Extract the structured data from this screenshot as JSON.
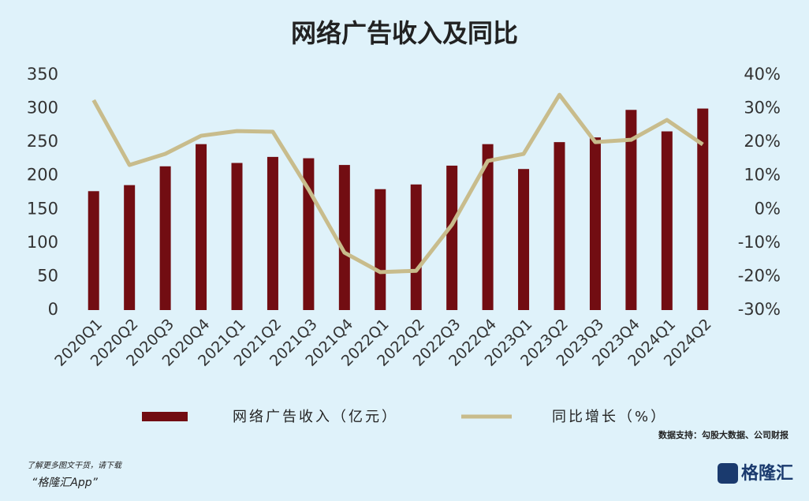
{
  "chart_data": {
    "type": "combo",
    "title": "网络广告收入及同比",
    "categories": [
      "2020Q1",
      "2020Q2",
      "2020Q3",
      "2020Q4",
      "2021Q1",
      "2021Q2",
      "2021Q3",
      "2021Q4",
      "2022Q1",
      "2022Q2",
      "2022Q3",
      "2022Q4",
      "2023Q1",
      "2023Q2",
      "2023Q3",
      "2023Q4",
      "2024Q1",
      "2024Q2"
    ],
    "series": [
      {
        "name": "网络广告收入（亿元）",
        "type": "bar",
        "color": "#720d12",
        "values": [
          177,
          186,
          214,
          247,
          219,
          228,
          226,
          216,
          180,
          187,
          215,
          247,
          210,
          250,
          257,
          298,
          266,
          300
        ]
      },
      {
        "name": "同比增长（%）",
        "type": "line",
        "axis": "y2",
        "color": "#c8bc8c",
        "values": [
          32.5,
          13.2,
          16.5,
          21.9,
          23.3,
          23.1,
          5.9,
          -12.9,
          -18.7,
          -18.3,
          -4.6,
          14.4,
          16.5,
          34.1,
          20.0,
          20.7,
          26.6,
          19.3
        ]
      }
    ],
    "ylim": [
      0,
      350
    ],
    "yticks": [
      0,
      50,
      100,
      150,
      200,
      250,
      300,
      350
    ],
    "y2lim": [
      -30,
      40
    ],
    "y2ticks": [
      {
        "value": -30,
        "label": "-30%"
      },
      {
        "value": -20,
        "label": "-20%"
      },
      {
        "value": -10,
        "label": "-10%"
      },
      {
        "value": 0,
        "label": "0%"
      },
      {
        "value": 10,
        "label": "10%"
      },
      {
        "value": 20,
        "label": "20%"
      },
      {
        "value": 30,
        "label": "30%"
      },
      {
        "value": 40,
        "label": "40%"
      }
    ],
    "grid": false,
    "legend": "bottom",
    "source": "数据支持：勾股大数据、公司财报"
  },
  "footer": {
    "note": "了解更多图文干货，请下载",
    "app": "“格隆汇App”",
    "logo": "格隆汇"
  }
}
